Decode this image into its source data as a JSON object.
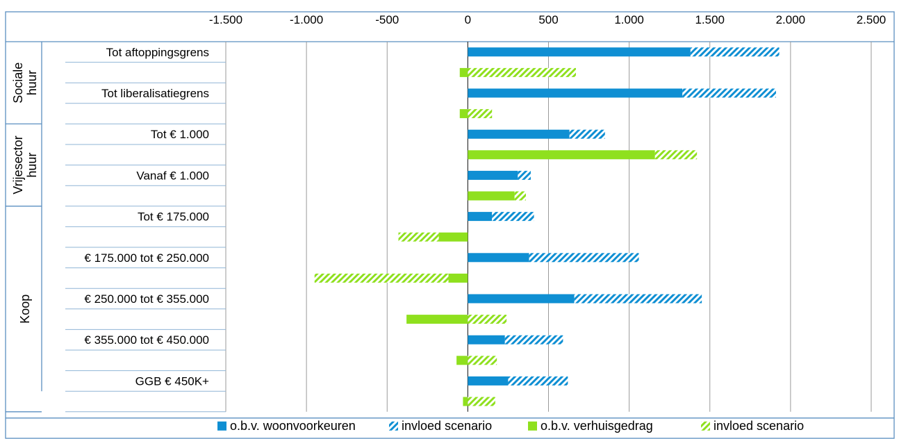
{
  "chart_data": {
    "type": "bar",
    "orientation": "horizontal",
    "stacked": true,
    "title": "",
    "xlim": [
      -1500,
      2500
    ],
    "x_ticks": [
      "-1.500",
      "-1.000",
      "-500",
      "0",
      "500",
      "1.000",
      "1.500",
      "2.000",
      "2.500"
    ],
    "x_tick_values": [
      -1500,
      -1000,
      -500,
      0,
      500,
      1000,
      1500,
      2000,
      2500
    ],
    "groups": [
      {
        "label": "Sociale huur",
        "lines": [
          "Sociale",
          "huur"
        ]
      },
      {
        "label": "Vrijesector huur",
        "lines": [
          "Vrijesector",
          "huur"
        ]
      },
      {
        "label": "Koop",
        "lines": [
          "Koop"
        ]
      }
    ],
    "categories": [
      "Tot aftoppingsgrens",
      "Tot liberalisatiegrens",
      "Tot € 1.000",
      "Vanaf € 1.000",
      "Tot € 175.000",
      "€ 175.000 tot € 250.000",
      "€ 250.000 tot € 355.000",
      "€ 355.000 tot € 450.000",
      "GGB € 450K+"
    ],
    "series": [
      {
        "name": "o.b.v. woonvoorkeuren",
        "color": "#0f8fd3",
        "pattern": "solid",
        "values": [
          1380,
          1330,
          630,
          310,
          150,
          380,
          660,
          230,
          250
        ]
      },
      {
        "name": "invloed scenario",
        "color": "#0f8fd3",
        "pattern": "hatched",
        "values": [
          550,
          580,
          220,
          80,
          260,
          680,
          790,
          360,
          370
        ]
      },
      {
        "name": "o.b.v. verhuisgedrag",
        "color": "#8fe01e",
        "pattern": "solid",
        "values": [
          -50,
          -50,
          1160,
          290,
          -180,
          -120,
          -380,
          -70,
          -30
        ]
      },
      {
        "name": "invloed scenario",
        "color": "#8fe01e",
        "pattern": "hatched",
        "values": [
          670,
          150,
          260,
          70,
          -250,
          -830,
          240,
          180,
          170
        ]
      }
    ],
    "grid": true,
    "legend_placement": "bottom"
  },
  "colors": {
    "blue": "#0f8fd3",
    "green": "#8fe01e",
    "frame": "#5a8fc0"
  }
}
